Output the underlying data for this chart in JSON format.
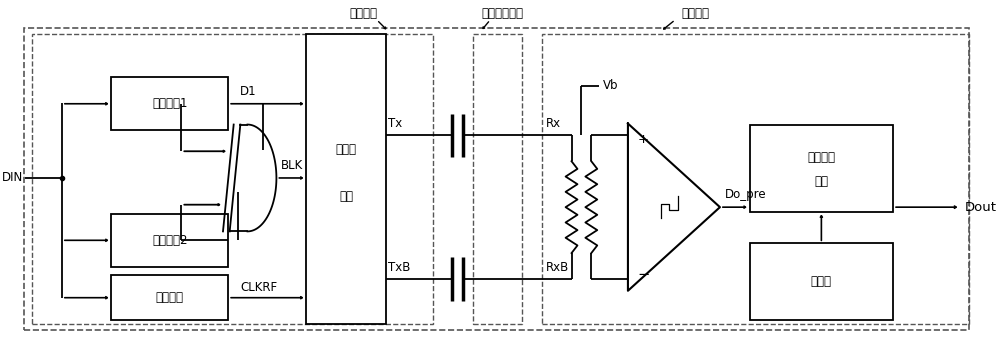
{
  "bg_color": "#ffffff",
  "lc": "#000000",
  "lw": 1.3,
  "fs": 8.5,
  "labels": {
    "mod_label": "调制电路",
    "cap_label": "差分高压电容",
    "demod_label": "解调电路",
    "din": "DIN",
    "d1": "D1",
    "blk": "BLK",
    "clkrf": "CLKRF",
    "tx": "Tx",
    "txb": "TxB",
    "rx": "Rx",
    "rxb": "RxB",
    "vb": "Vb",
    "do_pre": "Do_pre",
    "dout": "Dout",
    "plus": "+",
    "minus": "−"
  },
  "box_labels": {
    "delay1": "延时电路1",
    "delay2": "延时电路2",
    "refresh": "刷新电路",
    "diff_mod_1": "差分调",
    "diff_mod_2": "制器",
    "glitch_1": "毛刺消除",
    "glitch_2": "电路",
    "watchdog": "看门狗"
  }
}
